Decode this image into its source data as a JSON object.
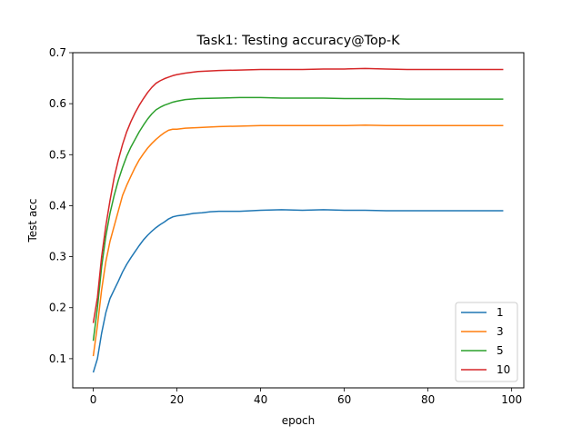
{
  "chart_data": {
    "type": "line",
    "title": "Task1: Testing accuracy@Top-K",
    "xlabel": "epoch",
    "ylabel": "Test acc",
    "xlim": [
      -4.9,
      102.9
    ],
    "ylim": [
      0.0428,
      0.7
    ],
    "xticks": [
      0,
      20,
      40,
      60,
      80,
      100
    ],
    "yticks": [
      0.1,
      0.2,
      0.3,
      0.4,
      0.5,
      0.6,
      0.7
    ],
    "xtick_labels": [
      "0",
      "20",
      "40",
      "60",
      "80",
      "100"
    ],
    "ytick_labels": [
      "0.1",
      "0.2",
      "0.3",
      "0.4",
      "0.5",
      "0.6",
      "0.7"
    ],
    "grid": false,
    "legend_position": "lower right",
    "series": [
      {
        "name": "1",
        "color": "#1f77b4",
        "points": [
          [
            0,
            0.073
          ],
          [
            1,
            0.1
          ],
          [
            2,
            0.15
          ],
          [
            3,
            0.19
          ],
          [
            4,
            0.218
          ],
          [
            5,
            0.235
          ],
          [
            6,
            0.252
          ],
          [
            7,
            0.27
          ],
          [
            8,
            0.285
          ],
          [
            9,
            0.298
          ],
          [
            10,
            0.31
          ],
          [
            11,
            0.322
          ],
          [
            12,
            0.333
          ],
          [
            13,
            0.342
          ],
          [
            14,
            0.35
          ],
          [
            15,
            0.357
          ],
          [
            16,
            0.363
          ],
          [
            17,
            0.368
          ],
          [
            18,
            0.374
          ],
          [
            19,
            0.378
          ],
          [
            20,
            0.38
          ],
          [
            22,
            0.382
          ],
          [
            24,
            0.385
          ],
          [
            26,
            0.386
          ],
          [
            28,
            0.388
          ],
          [
            30,
            0.389
          ],
          [
            35,
            0.389
          ],
          [
            40,
            0.391
          ],
          [
            45,
            0.392
          ],
          [
            50,
            0.391
          ],
          [
            55,
            0.392
          ],
          [
            60,
            0.391
          ],
          [
            65,
            0.391
          ],
          [
            70,
            0.39
          ],
          [
            75,
            0.39
          ],
          [
            80,
            0.39
          ],
          [
            85,
            0.39
          ],
          [
            90,
            0.39
          ],
          [
            98,
            0.39
          ]
        ]
      },
      {
        "name": "3",
        "color": "#ff7f0e",
        "points": [
          [
            0,
            0.105
          ],
          [
            1,
            0.165
          ],
          [
            2,
            0.235
          ],
          [
            3,
            0.29
          ],
          [
            4,
            0.33
          ],
          [
            5,
            0.36
          ],
          [
            6,
            0.39
          ],
          [
            7,
            0.42
          ],
          [
            8,
            0.44
          ],
          [
            9,
            0.458
          ],
          [
            10,
            0.475
          ],
          [
            11,
            0.49
          ],
          [
            12,
            0.502
          ],
          [
            13,
            0.513
          ],
          [
            14,
            0.522
          ],
          [
            15,
            0.53
          ],
          [
            16,
            0.537
          ],
          [
            17,
            0.543
          ],
          [
            18,
            0.548
          ],
          [
            19,
            0.55
          ],
          [
            20,
            0.55
          ],
          [
            22,
            0.552
          ],
          [
            25,
            0.553
          ],
          [
            30,
            0.555
          ],
          [
            35,
            0.556
          ],
          [
            40,
            0.557
          ],
          [
            45,
            0.557
          ],
          [
            50,
            0.557
          ],
          [
            55,
            0.557
          ],
          [
            60,
            0.557
          ],
          [
            65,
            0.558
          ],
          [
            70,
            0.557
          ],
          [
            75,
            0.557
          ],
          [
            80,
            0.557
          ],
          [
            85,
            0.557
          ],
          [
            90,
            0.557
          ],
          [
            98,
            0.557
          ]
        ]
      },
      {
        "name": "5",
        "color": "#2ca02c",
        "points": [
          [
            0,
            0.135
          ],
          [
            1,
            0.2
          ],
          [
            2,
            0.28
          ],
          [
            3,
            0.34
          ],
          [
            4,
            0.385
          ],
          [
            5,
            0.42
          ],
          [
            6,
            0.45
          ],
          [
            7,
            0.475
          ],
          [
            8,
            0.497
          ],
          [
            9,
            0.515
          ],
          [
            10,
            0.53
          ],
          [
            11,
            0.545
          ],
          [
            12,
            0.558
          ],
          [
            13,
            0.57
          ],
          [
            14,
            0.58
          ],
          [
            15,
            0.588
          ],
          [
            16,
            0.593
          ],
          [
            17,
            0.597
          ],
          [
            18,
            0.6
          ],
          [
            19,
            0.603
          ],
          [
            20,
            0.605
          ],
          [
            22,
            0.608
          ],
          [
            25,
            0.61
          ],
          [
            30,
            0.611
          ],
          [
            35,
            0.612
          ],
          [
            40,
            0.612
          ],
          [
            45,
            0.611
          ],
          [
            50,
            0.611
          ],
          [
            55,
            0.611
          ],
          [
            60,
            0.61
          ],
          [
            65,
            0.61
          ],
          [
            70,
            0.61
          ],
          [
            75,
            0.609
          ],
          [
            80,
            0.609
          ],
          [
            85,
            0.609
          ],
          [
            90,
            0.609
          ],
          [
            98,
            0.609
          ]
        ]
      },
      {
        "name": "10",
        "color": "#d62728",
        "points": [
          [
            0,
            0.17
          ],
          [
            1,
            0.22
          ],
          [
            2,
            0.3
          ],
          [
            3,
            0.36
          ],
          [
            4,
            0.41
          ],
          [
            5,
            0.455
          ],
          [
            6,
            0.49
          ],
          [
            7,
            0.52
          ],
          [
            8,
            0.545
          ],
          [
            9,
            0.565
          ],
          [
            10,
            0.582
          ],
          [
            11,
            0.597
          ],
          [
            12,
            0.61
          ],
          [
            13,
            0.622
          ],
          [
            14,
            0.632
          ],
          [
            15,
            0.64
          ],
          [
            16,
            0.645
          ],
          [
            17,
            0.649
          ],
          [
            18,
            0.652
          ],
          [
            19,
            0.655
          ],
          [
            20,
            0.657
          ],
          [
            22,
            0.66
          ],
          [
            25,
            0.663
          ],
          [
            30,
            0.665
          ],
          [
            35,
            0.666
          ],
          [
            40,
            0.667
          ],
          [
            45,
            0.667
          ],
          [
            50,
            0.667
          ],
          [
            55,
            0.668
          ],
          [
            60,
            0.668
          ],
          [
            65,
            0.669
          ],
          [
            70,
            0.668
          ],
          [
            75,
            0.667
          ],
          [
            80,
            0.667
          ],
          [
            85,
            0.667
          ],
          [
            90,
            0.667
          ],
          [
            98,
            0.667
          ]
        ]
      }
    ]
  }
}
